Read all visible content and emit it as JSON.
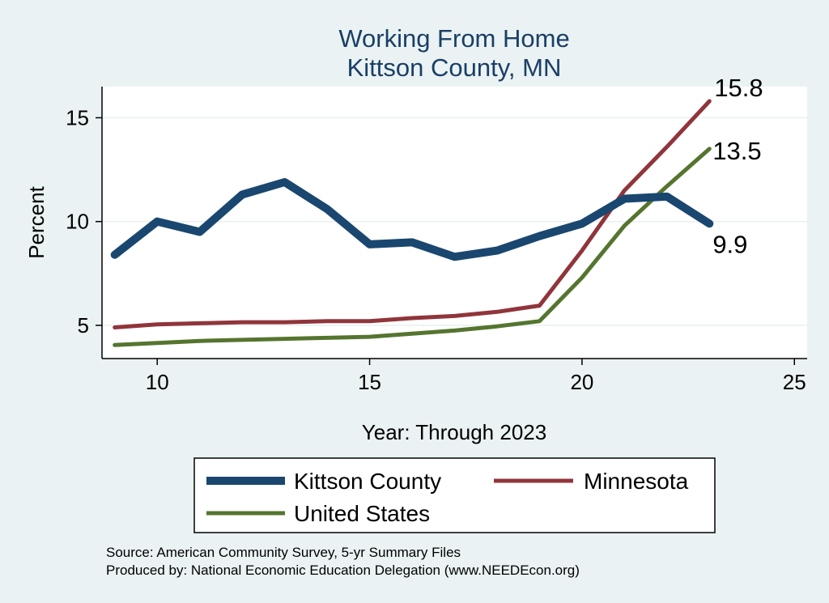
{
  "chart_data": {
    "type": "line",
    "title": [
      "Working From Home",
      "Kittson County, MN"
    ],
    "xlabel": "Year: Through 2023",
    "ylabel": "Percent",
    "xlim": [
      8.7,
      25.3
    ],
    "ylim": [
      3.4,
      16.5
    ],
    "xticks": [
      10,
      15,
      20,
      25
    ],
    "yticks": [
      5,
      10,
      15
    ],
    "grid": "horizontal",
    "legend_position": "bottom",
    "x": [
      9,
      10,
      11,
      12,
      13,
      14,
      15,
      16,
      17,
      18,
      19,
      20,
      21,
      22,
      23
    ],
    "series": [
      {
        "name": "Kittson County",
        "color": "#1a476f",
        "values": [
          8.4,
          10.0,
          9.5,
          11.3,
          11.9,
          10.6,
          8.9,
          9.0,
          8.3,
          8.6,
          9.3,
          9.9,
          11.1,
          11.2,
          9.9
        ],
        "end_label": "9.9"
      },
      {
        "name": "Minnesota",
        "color": "#90353b",
        "values": [
          4.9,
          5.05,
          5.1,
          5.15,
          5.15,
          5.2,
          5.2,
          5.35,
          5.45,
          5.65,
          5.95,
          8.6,
          11.5,
          13.6,
          15.8
        ],
        "end_label": "15.8"
      },
      {
        "name": "United States",
        "color": "#55752f",
        "values": [
          4.05,
          4.15,
          4.25,
          4.3,
          4.35,
          4.4,
          4.45,
          4.6,
          4.75,
          4.95,
          5.2,
          7.3,
          9.8,
          11.7,
          13.5
        ],
        "end_label": "13.5"
      }
    ]
  },
  "source": {
    "line1": "Source: American Community Survey, 5-yr Summary Files",
    "line2": "Produced by: National Economic Education Delegation (www.NEEDEcon.org)"
  }
}
